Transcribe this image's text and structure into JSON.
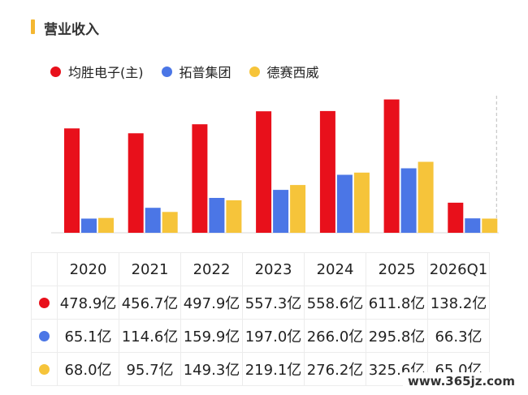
{
  "title": "营业收入",
  "watermark": "www.365jz.com",
  "colors": {
    "accent": "#f4b731",
    "series": [
      "#e8101b",
      "#4b76e6",
      "#f6c43a"
    ]
  },
  "chart_data": {
    "type": "bar",
    "categories": [
      "2020",
      "2021",
      "2022",
      "2023",
      "2024",
      "2025",
      "2026Q1"
    ],
    "series": [
      {
        "name": "均胜电子(主)",
        "color": "#e8101b",
        "values": [
          478.9,
          456.7,
          497.9,
          557.3,
          558.6,
          611.8,
          138.2
        ],
        "labels": [
          "478.9亿",
          "456.7亿",
          "497.9亿",
          "557.3亿",
          "558.6亿",
          "611.8亿",
          "138.2亿"
        ]
      },
      {
        "name": "拓普集团",
        "color": "#4b76e6",
        "values": [
          65.1,
          114.6,
          159.9,
          197.0,
          266.0,
          295.8,
          66.3
        ],
        "labels": [
          "65.1亿",
          "114.6亿",
          "159.9亿",
          "197.0亿",
          "266.0亿",
          "295.8亿",
          "66.3亿"
        ]
      },
      {
        "name": "德赛西威",
        "color": "#f6c43a",
        "values": [
          68.0,
          95.7,
          149.3,
          219.1,
          276.2,
          325.6,
          65.0
        ],
        "labels": [
          "68.0亿",
          "95.7亿",
          "149.3亿",
          "219.1亿",
          "276.2亿",
          "325.6亿",
          "65.0亿"
        ]
      }
    ],
    "legend_position": "top-left",
    "divider_before": "2026Q1",
    "grid": false
  }
}
